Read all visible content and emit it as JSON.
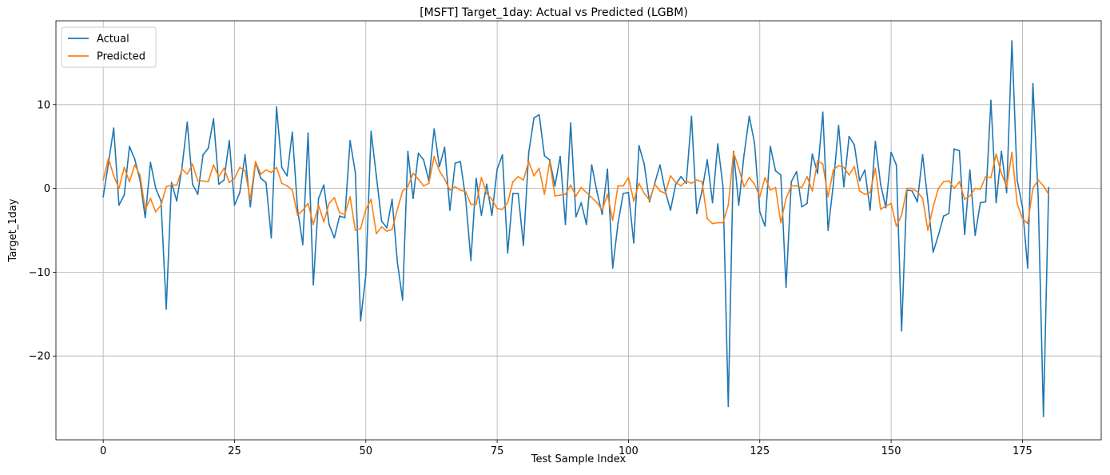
{
  "chart_data": {
    "type": "line",
    "title": "[MSFT] Target_1day: Actual vs Predicted (LGBM)",
    "xlabel": "Test Sample Index",
    "ylabel": "Target_1day",
    "xlim": [
      -9,
      190
    ],
    "ylim": [
      -30,
      20
    ],
    "x_ticks": [
      0,
      25,
      50,
      75,
      100,
      125,
      150,
      175
    ],
    "y_ticks": [
      -20,
      -10,
      0,
      10
    ],
    "y_tick_labels": [
      "−20",
      "−10",
      "0",
      "10"
    ],
    "grid": true,
    "legend_position": "upper-left",
    "series": [
      {
        "name": "Actual",
        "color": "#1f77b4",
        "values": [
          -1.0,
          3.0,
          7.2,
          -2.0,
          -0.8,
          5.0,
          3.5,
          1.0,
          -3.5,
          3.1,
          0.0,
          -1.5,
          -14.4,
          0.7,
          -1.5,
          2.5,
          7.9,
          0.5,
          -0.7,
          4.0,
          4.8,
          8.3,
          0.5,
          1.0,
          5.7,
          -2.0,
          -0.5,
          4.0,
          -2.2,
          3.1,
          1.2,
          0.7,
          -5.9,
          9.7,
          2.5,
          1.5,
          6.7,
          -2.5,
          -6.7,
          6.6,
          -11.5,
          -1.2,
          0.4,
          -4.3,
          -5.9,
          -3.3,
          -3.5,
          5.7,
          1.9,
          -15.8,
          -10.3,
          6.8,
          1.5,
          -3.9,
          -4.7,
          -1.3,
          -8.8,
          -13.3,
          4.4,
          -1.2,
          4.2,
          3.4,
          0.9,
          7.1,
          2.6,
          4.9,
          -2.6,
          3.0,
          3.2,
          -1.2,
          -8.6,
          1.2,
          -3.2,
          0.5,
          -3.2,
          2.3,
          4.0,
          -7.7,
          -0.6,
          -0.6,
          -6.8,
          4.2,
          8.4,
          8.8,
          3.9,
          3.4,
          0.3,
          3.8,
          -4.3,
          7.8,
          -3.4,
          -1.7,
          -4.3,
          2.8,
          -0.4,
          -3.1,
          2.3,
          -9.5,
          -4.2,
          -0.6,
          -0.5,
          -6.5,
          5.1,
          2.9,
          -1.6,
          0.6,
          2.8,
          -0.3,
          -2.6,
          0.5,
          1.4,
          0.6,
          8.6,
          -3.0,
          -0.3,
          3.4,
          -1.7,
          5.3,
          0.2,
          -26.0,
          4.4,
          -2.0,
          4.0,
          8.6,
          5.4,
          -2.8,
          -4.5,
          5.0,
          2.1,
          1.6,
          -11.8,
          0.8,
          2.0,
          -2.2,
          -1.8,
          4.1,
          1.8,
          9.1,
          -5.0,
          0.5,
          7.5,
          0.2,
          6.2,
          5.2,
          0.9,
          2.2,
          -2.6,
          5.6,
          0.5,
          -2.3,
          4.3,
          2.8,
          -17.0,
          -0.2,
          -0.3,
          -1.6,
          4.0,
          -1.5,
          -7.6,
          -5.6,
          -3.3,
          -3.0,
          4.7,
          4.5,
          -5.5,
          2.2,
          -5.6,
          -1.7,
          -1.6,
          10.5,
          -1.7,
          4.4,
          -0.5,
          17.6,
          1.0,
          -2.2,
          -9.5,
          12.5,
          -1.0,
          -27.2,
          0.1
        ]
      },
      {
        "name": "Predicted",
        "color": "#ff7f0e",
        "values": [
          1.0,
          3.6,
          1.5,
          0.0,
          2.5,
          0.8,
          2.8,
          1.6,
          -2.5,
          -1.2,
          -2.8,
          -2.0,
          0.2,
          0.4,
          0.4,
          2.3,
          1.7,
          2.9,
          0.9,
          0.9,
          0.8,
          2.8,
          1.4,
          2.4,
          0.7,
          1.2,
          2.5,
          2.1,
          -1.3,
          3.2,
          1.7,
          2.2,
          1.9,
          2.5,
          0.6,
          0.3,
          -0.2,
          -3.2,
          -2.6,
          -1.8,
          -4.3,
          -2.0,
          -4.0,
          -1.8,
          -1.1,
          -2.9,
          -3.1,
          -1.0,
          -5.0,
          -4.8,
          -2.5,
          -1.3,
          -5.4,
          -4.6,
          -5.1,
          -4.9,
          -2.5,
          -0.3,
          0.2,
          1.8,
          1.1,
          0.3,
          0.6,
          3.8,
          2.1,
          1.1,
          -0.2,
          0.2,
          -0.2,
          -0.4,
          -1.9,
          -1.9,
          1.3,
          -0.6,
          -1.3,
          -2.4,
          -2.5,
          -1.7,
          0.8,
          1.4,
          1.0,
          3.2,
          1.5,
          2.4,
          -0.7,
          3.2,
          -0.9,
          -0.8,
          -0.7,
          0.4,
          -0.9,
          0.1,
          -0.5,
          -1.1,
          -1.7,
          -2.6,
          -0.7,
          -3.8,
          0.3,
          0.3,
          1.3,
          -1.5,
          0.6,
          -0.6,
          -1.4,
          0.5,
          -0.3,
          -0.6,
          1.5,
          0.7,
          0.3,
          0.9,
          0.6,
          1.0,
          0.8,
          -3.6,
          -4.2,
          -4.1,
          -4.1,
          -2.0,
          4.3,
          2.4,
          0.2,
          1.3,
          0.5,
          -1.0,
          1.3,
          -0.2,
          0.1,
          -4.1,
          -1.2,
          0.3,
          0.3,
          0.1,
          1.4,
          -0.3,
          3.3,
          2.9,
          -1.0,
          2.2,
          2.7,
          2.5,
          1.6,
          2.6,
          -0.3,
          -0.7,
          -0.5,
          2.4,
          -2.5,
          -2.1,
          -1.8,
          -4.5,
          -3.2,
          0.0,
          0.0,
          -0.4,
          -1.2,
          -5.0,
          -2.2,
          0.0,
          0.8,
          0.9,
          0.0,
          0.8,
          -1.3,
          -0.9,
          0.0,
          -0.1,
          1.4,
          1.3,
          4.1,
          1.8,
          0.2,
          4.3,
          -1.8,
          -3.6,
          -4.2,
          0.0,
          1.0,
          0.3,
          -0.7
        ]
      }
    ]
  }
}
